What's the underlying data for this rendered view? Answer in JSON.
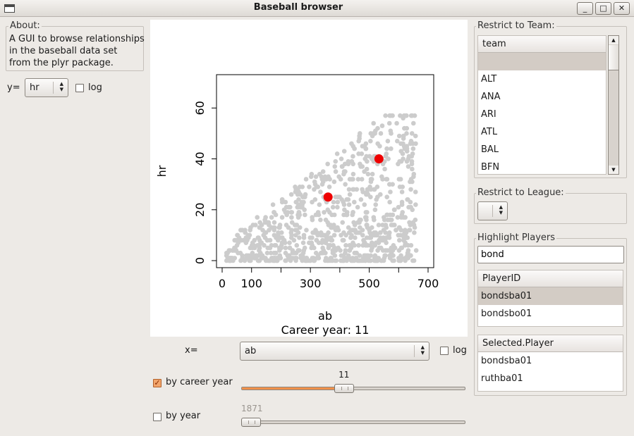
{
  "window": {
    "title": "Baseball browser",
    "buttons": [
      "_",
      "□",
      "✕"
    ]
  },
  "about": {
    "label": "About:",
    "lines": [
      "A GUI to browse relationships",
      "in the baseball data set",
      "from the plyr package."
    ]
  },
  "y_control": {
    "label": "y=",
    "value": "hr",
    "log_label": "log",
    "log_checked": false
  },
  "x_control": {
    "label": "x=",
    "value": "ab",
    "log_label": "log",
    "log_checked": false
  },
  "by_career_year": {
    "label": "by career year",
    "checked": true,
    "value": 11,
    "value_text": "11",
    "min": 1,
    "max": 23
  },
  "by_year": {
    "label": "by year",
    "checked": false,
    "value": 1871,
    "value_text": "1871",
    "min": 1871,
    "max": 2007
  },
  "team_filter": {
    "label": "Restrict to Team:",
    "header": "team",
    "items": [
      "",
      "ALT",
      "ANA",
      "ARI",
      "ATL",
      "BAL",
      "BFN"
    ]
  },
  "league_filter": {
    "label": "Restrict to League:",
    "value": ""
  },
  "highlight": {
    "label": "Highlight Players",
    "search_value": "bond",
    "player_header": "PlayerID",
    "players": [
      "bondsba01",
      "bondsbo01"
    ],
    "selected_header": "Selected.Player",
    "selected": [
      "bondsba01",
      "ruthba01"
    ]
  },
  "colors": {
    "points": "#cccccc",
    "highlight": "#ee0000",
    "slider_fill": "#f0904a"
  },
  "chart_data": {
    "type": "scatter",
    "title": "",
    "subtitle": "Career year: 11",
    "xlabel": "ab",
    "ylabel": "hr",
    "xlim": [
      0,
      700
    ],
    "ylim": [
      0,
      72
    ],
    "x_ticks": [
      0,
      100,
      300,
      500,
      700
    ],
    "x_tick_labels": [
      "0",
      "100",
      "300",
      "500",
      "700"
    ],
    "x_minor_ticks": [
      200,
      400,
      600
    ],
    "y_ticks": [
      0,
      20,
      40,
      60
    ],
    "y_tick_labels": [
      "0",
      "20",
      "40",
      "60"
    ],
    "highlight_points": [
      {
        "x": 360,
        "y": 25
      },
      {
        "x": 533,
        "y": 40
      }
    ],
    "points_description_count": 900
  }
}
